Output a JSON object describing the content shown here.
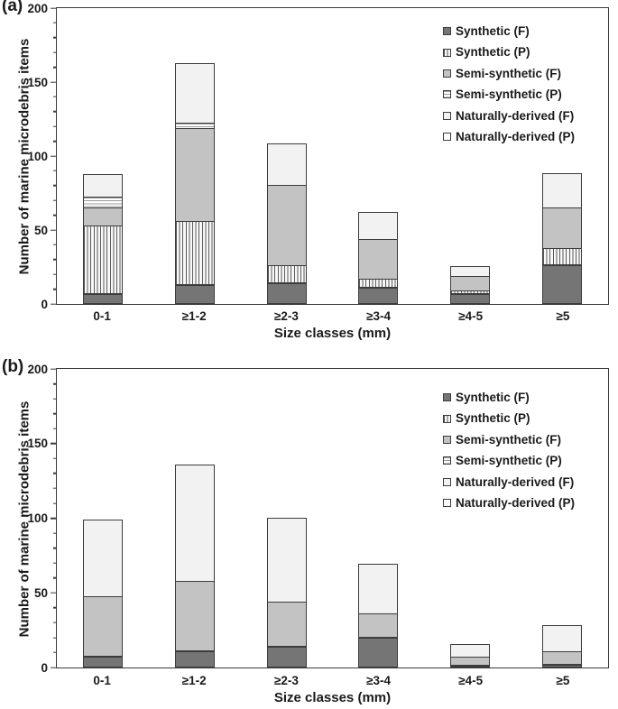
{
  "figure": {
    "y_axis_label": "Number of marine microdebris items",
    "x_axis_label": "Size classes (mm)",
    "colors": {
      "axis": "#3a3a3a",
      "bar_border": "#3c3c3c",
      "synthetic_f": "#757575",
      "semi_synthetic_f": "#c3c3c3",
      "naturally_derived_f": "#f2f2f2",
      "naturally_derived_p": "#ffffff"
    }
  },
  "chart_data": [
    {
      "type": "bar",
      "stacked": true,
      "panel_label": "(a)",
      "categories": [
        "0-1",
        "≥1-2",
        "≥2-3",
        "≥3-4",
        "≥4-5",
        "≥5"
      ],
      "series": [
        {
          "name": "Synthetic (F)",
          "fill": "dark-gray",
          "values": [
            7,
            13,
            14,
            11,
            7,
            26
          ]
        },
        {
          "name": "Synthetic (P)",
          "fill": "vertical-stripes",
          "values": [
            46,
            43,
            12,
            6,
            2,
            12
          ]
        },
        {
          "name": "Semi-synthetic (F)",
          "fill": "medium-gray",
          "values": [
            13,
            64,
            55,
            28,
            11,
            28
          ]
        },
        {
          "name": "Semi-synthetic (P)",
          "fill": "horizontal-stripes",
          "values": [
            8,
            4,
            0,
            0,
            0,
            0
          ]
        },
        {
          "name": "Naturally-derived (F)",
          "fill": "light-gray",
          "values": [
            16,
            41,
            29,
            19,
            7,
            24
          ]
        },
        {
          "name": "Naturally-derived (P)",
          "fill": "white",
          "values": [
            0,
            0,
            0,
            0,
            0,
            0
          ]
        }
      ],
      "totals": [
        90,
        165,
        110,
        64,
        27,
        90
      ],
      "xlabel": "Size classes (mm)",
      "ylabel": "Number of marine microdebris items",
      "ylim": [
        0,
        200
      ],
      "y_major_step": 50,
      "y_minor_step": 10,
      "grid": false,
      "legend_position": "top-right-inside"
    },
    {
      "type": "bar",
      "stacked": true,
      "panel_label": "(b)",
      "categories": [
        "0-1",
        "≥1-2",
        "≥2-3",
        "≥3-4",
        "≥4-5",
        "≥5"
      ],
      "series": [
        {
          "name": "Synthetic (F)",
          "fill": "dark-gray",
          "values": [
            7,
            11,
            14,
            20,
            1,
            2
          ]
        },
        {
          "name": "Synthetic (P)",
          "fill": "vertical-stripes",
          "values": [
            0,
            0,
            0,
            0,
            0,
            0
          ]
        },
        {
          "name": "Semi-synthetic (F)",
          "fill": "medium-gray",
          "values": [
            41,
            47,
            30,
            16,
            6,
            9
          ]
        },
        {
          "name": "Semi-synthetic (P)",
          "fill": "horizontal-stripes",
          "values": [
            0,
            0,
            0,
            0,
            0,
            0
          ]
        },
        {
          "name": "Naturally-derived (F)",
          "fill": "light-gray",
          "values": [
            52,
            79,
            57,
            34,
            9,
            18
          ]
        },
        {
          "name": "Naturally-derived (P)",
          "fill": "white",
          "values": [
            0,
            0,
            0,
            0,
            0,
            0
          ]
        }
      ],
      "totals": [
        100,
        137,
        101,
        70,
        16,
        29
      ],
      "xlabel": "Size classes (mm)",
      "ylabel": "Number of marine microdebris items",
      "ylim": [
        0,
        200
      ],
      "y_major_step": 50,
      "y_minor_step": 10,
      "grid": false,
      "legend_position": "top-right-inside"
    }
  ]
}
